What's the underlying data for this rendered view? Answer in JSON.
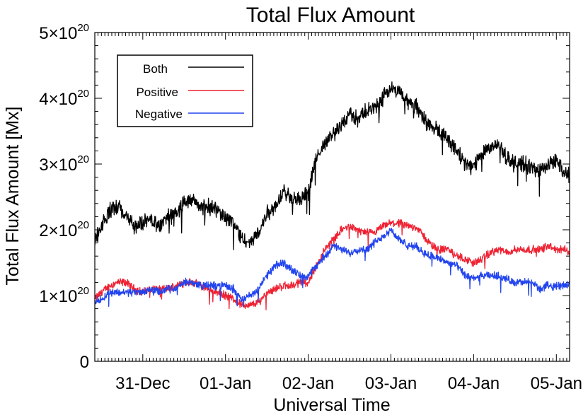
{
  "chart_data": {
    "type": "line",
    "title": "Total Flux Amount",
    "xlabel": "Universal Time",
    "ylabel": "Total Flux Amount [Mx]",
    "x_unit": "days (day 0 = 31-Dec 00:00 UT)",
    "xlim": [
      -0.58,
      5.16
    ],
    "ylim": [
      0,
      5e+20
    ],
    "x_ticks": [
      {
        "value": 0,
        "label": "31-Dec"
      },
      {
        "value": 1,
        "label": "01-Jan"
      },
      {
        "value": 2,
        "label": "02-Jan"
      },
      {
        "value": 3,
        "label": "03-Jan"
      },
      {
        "value": 4,
        "label": "04-Jan"
      },
      {
        "value": 5,
        "label": "05-Jan"
      }
    ],
    "y_ticks": [
      {
        "value": 0,
        "mantissa": "0",
        "exponent": ""
      },
      {
        "value": 1e+20,
        "mantissa": "1×10",
        "exponent": "20"
      },
      {
        "value": 2e+20,
        "mantissa": "2×10",
        "exponent": "20"
      },
      {
        "value": 3e+20,
        "mantissa": "3×10",
        "exponent": "20"
      },
      {
        "value": 4e+20,
        "mantissa": "4×10",
        "exponent": "20"
      },
      {
        "value": 5e+20,
        "mantissa": "5×10",
        "exponent": "20"
      }
    ],
    "legend": {
      "placement": "top-left",
      "entries": [
        "Both",
        "Positive",
        "Negative"
      ]
    },
    "grid": false,
    "series": [
      {
        "name": "Both",
        "color": "#000000",
        "noise": 9e+18,
        "x": [
          -0.58,
          -0.5,
          -0.4,
          -0.3,
          -0.2,
          -0.1,
          0.0,
          0.1,
          0.2,
          0.3,
          0.4,
          0.5,
          0.6,
          0.7,
          0.8,
          0.9,
          1.0,
          1.1,
          1.2,
          1.3,
          1.4,
          1.5,
          1.6,
          1.7,
          1.8,
          1.9,
          2.0,
          2.1,
          2.2,
          2.3,
          2.4,
          2.5,
          2.6,
          2.7,
          2.8,
          2.9,
          3.0,
          3.1,
          3.2,
          3.3,
          3.4,
          3.5,
          3.6,
          3.7,
          3.8,
          3.9,
          4.0,
          4.1,
          4.2,
          4.3,
          4.4,
          4.5,
          4.6,
          4.7,
          4.8,
          4.9,
          5.0,
          5.1,
          5.16
        ],
        "y": [
          1.85e+20,
          2.05e+20,
          2.3e+20,
          2.35e+20,
          2.2e+20,
          2.05e+20,
          2.1e+20,
          2.15e+20,
          2.05e+20,
          2.2e+20,
          2.25e+20,
          2.4e+20,
          2.45e+20,
          2.35e+20,
          2.35e+20,
          2.3e+20,
          2.2e+20,
          2.1e+20,
          1.85e+20,
          1.8e+20,
          1.95e+20,
          2.25e+20,
          2.35e+20,
          2.6e+20,
          2.5e+20,
          2.45e+20,
          2.55e+20,
          3.1e+20,
          3.3e+20,
          3.45e+20,
          3.6e+20,
          3.75e+20,
          3.7e+20,
          3.8e+20,
          3.85e+20,
          4e+20,
          4.15e+20,
          4.1e+20,
          3.95e+20,
          3.9e+20,
          3.7e+20,
          3.55e+20,
          3.5e+20,
          3.35e+20,
          3.2e+20,
          3e+20,
          2.95e+20,
          3.2e+20,
          3.25e+20,
          3.3e+20,
          3.1e+20,
          3e+20,
          3e+20,
          2.95e+20,
          2.9e+20,
          3e+20,
          3.05e+20,
          2.85e+20,
          2.85e+20
        ]
      },
      {
        "name": "Positive",
        "color": "#ee2233",
        "noise": 4.5e+18,
        "x": [
          -0.58,
          -0.5,
          -0.4,
          -0.3,
          -0.2,
          -0.1,
          0.0,
          0.1,
          0.2,
          0.3,
          0.4,
          0.5,
          0.6,
          0.7,
          0.8,
          0.9,
          1.0,
          1.1,
          1.2,
          1.3,
          1.4,
          1.5,
          1.6,
          1.7,
          1.8,
          1.9,
          2.0,
          2.1,
          2.2,
          2.3,
          2.4,
          2.5,
          2.6,
          2.7,
          2.8,
          2.9,
          3.0,
          3.1,
          3.2,
          3.3,
          3.4,
          3.5,
          3.6,
          3.7,
          3.8,
          3.9,
          4.0,
          4.1,
          4.2,
          4.3,
          4.4,
          4.5,
          4.6,
          4.7,
          4.8,
          4.9,
          5.0,
          5.1,
          5.16
        ],
        "y": [
          9.5e+19,
          1.05e+20,
          1.15e+20,
          1.2e+20,
          1.2e+20,
          1.1e+20,
          1.05e+20,
          1.1e+20,
          1.1e+20,
          1.1e+20,
          1.15e+20,
          1.2e+20,
          1.2e+20,
          1.15e+20,
          1.1e+20,
          1.05e+20,
          1e+20,
          9.5e+19,
          8.5e+19,
          8.5e+19,
          9e+19,
          1.05e+20,
          1.1e+20,
          1.15e+20,
          1.15e+20,
          1.2e+20,
          1.2e+20,
          1.45e+20,
          1.7e+20,
          1.85e+20,
          2e+20,
          2.05e+20,
          2e+20,
          1.95e+20,
          1.95e+20,
          2.05e+20,
          2.1e+20,
          2.1e+20,
          2.05e+20,
          2.05e+20,
          1.9e+20,
          1.75e+20,
          1.7e+20,
          1.7e+20,
          1.6e+20,
          1.55e+20,
          1.5e+20,
          1.55e+20,
          1.65e+20,
          1.7e+20,
          1.65e+20,
          1.7e+20,
          1.7e+20,
          1.7e+20,
          1.7e+20,
          1.75e+20,
          1.7e+20,
          1.7e+20,
          1.65e+20
        ]
      },
      {
        "name": "Negative",
        "color": "#2244ee",
        "noise": 4.5e+18,
        "x": [
          -0.58,
          -0.5,
          -0.4,
          -0.3,
          -0.2,
          -0.1,
          0.0,
          0.1,
          0.2,
          0.3,
          0.4,
          0.5,
          0.6,
          0.7,
          0.8,
          0.9,
          1.0,
          1.1,
          1.2,
          1.3,
          1.4,
          1.5,
          1.6,
          1.7,
          1.8,
          1.9,
          2.0,
          2.1,
          2.2,
          2.3,
          2.4,
          2.5,
          2.6,
          2.7,
          2.8,
          2.9,
          3.0,
          3.1,
          3.2,
          3.3,
          3.4,
          3.5,
          3.6,
          3.7,
          3.8,
          3.9,
          4.0,
          4.1,
          4.2,
          4.3,
          4.4,
          4.5,
          4.6,
          4.7,
          4.8,
          4.9,
          5.0,
          5.1,
          5.16
        ],
        "y": [
          9e+19,
          9.5e+19,
          1.05e+20,
          1.05e+20,
          1.05e+20,
          1.05e+20,
          1.05e+20,
          1.1e+20,
          1.05e+20,
          1.1e+20,
          1.1e+20,
          1.2e+20,
          1.2e+20,
          1.15e+20,
          1.15e+20,
          1.15e+20,
          1.15e+20,
          1.1e+20,
          9.5e+19,
          1e+20,
          1.1e+20,
          1.3e+20,
          1.45e+20,
          1.5e+20,
          1.4e+20,
          1.3e+20,
          1.3e+20,
          1.45e+20,
          1.6e+20,
          1.75e+20,
          1.7e+20,
          1.65e+20,
          1.7e+20,
          1.7e+20,
          1.8e+20,
          1.9e+20,
          2e+20,
          1.85e+20,
          1.75e+20,
          1.75e+20,
          1.65e+20,
          1.6e+20,
          1.55e+20,
          1.5e+20,
          1.45e+20,
          1.3e+20,
          1.25e+20,
          1.3e+20,
          1.3e+20,
          1.3e+20,
          1.25e+20,
          1.2e+20,
          1.2e+20,
          1.2e+20,
          1.1e+20,
          1.15e+20,
          1.15e+20,
          1.15e+20,
          1.2e+20
        ]
      }
    ]
  }
}
